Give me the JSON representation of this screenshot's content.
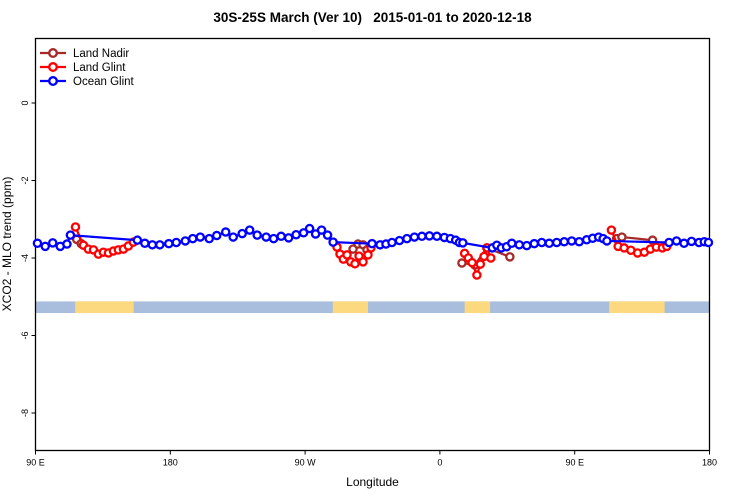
{
  "chart_data": {
    "type": "line",
    "title": "30S-25S March (Ver 10)   2015-01-01 to 2020-12-18",
    "xlabel": "Longitude",
    "ylabel": "XCO2 - MLO trend (ppm)",
    "legend_position": "top-left",
    "grid": false,
    "x_range_deg": [
      90,
      540
    ],
    "y_range_ppm": [
      -8.95,
      1.68
    ],
    "x_axis_note": "longitude wraps eastward: 90E, 180, 90W, 0, 90E, 180",
    "x_ticks": [
      {
        "value": 90,
        "label": "90 E"
      },
      {
        "value": 180,
        "label": "180"
      },
      {
        "value": 270,
        "label": "90 W"
      },
      {
        "value": 360,
        "label": "0"
      },
      {
        "value": 450,
        "label": "90 E"
      },
      {
        "value": 540,
        "label": "180"
      }
    ],
    "y_ticks": [
      {
        "value": 0,
        "label": "0"
      },
      {
        "value": -2,
        "label": "-2"
      },
      {
        "value": -4,
        "label": "-4"
      },
      {
        "value": -6,
        "label": "-6"
      },
      {
        "value": -8,
        "label": "-8"
      }
    ],
    "series": [
      {
        "name": "Land Nadir",
        "color": "#A52A2A",
        "marker": "open-circle",
        "clusters": [
          [
            [
              117.5,
              -3.52
            ],
            [
              120.5,
              -3.63
            ]
          ],
          [
            [
              302,
              -3.77
            ],
            [
              305.3,
              -3.64
            ],
            [
              308.7,
              -3.66
            ],
            [
              311.3,
              -3.79
            ]
          ],
          [
            [
              374.7,
              -4.13
            ],
            [
              383.3,
              -4.18
            ],
            [
              391.3,
              -3.74
            ],
            [
              406.7,
              -3.97
            ]
          ],
          [
            [
              478,
              -3.5
            ],
            [
              481.5,
              -3.46
            ],
            [
              502,
              -3.54
            ]
          ]
        ]
      },
      {
        "name": "Land Glint",
        "color": "#FF0000",
        "marker": "open-circle",
        "clusters": [
          [
            [
              116.7,
              -3.2
            ],
            [
              122,
              -3.67
            ],
            [
              125.3,
              -3.77
            ],
            [
              128.7,
              -3.79
            ],
            [
              132,
              -3.9
            ],
            [
              135.3,
              -3.85
            ],
            [
              138.7,
              -3.87
            ],
            [
              142,
              -3.82
            ],
            [
              145.3,
              -3.79
            ],
            [
              148.7,
              -3.77
            ],
            [
              152,
              -3.69
            ],
            [
              155.3,
              -3.59
            ]
          ],
          [
            [
              291.3,
              -3.72
            ],
            [
              293.3,
              -3.9
            ],
            [
              295.5,
              -4.03
            ],
            [
              298,
              -3.92
            ],
            [
              300.5,
              -4.1
            ],
            [
              303.3,
              -4.15
            ],
            [
              306,
              -3.95
            ],
            [
              308.7,
              -4.1
            ],
            [
              312,
              -3.92
            ],
            [
              314,
              -3.74
            ]
          ],
          [
            [
              376.5,
              -3.88
            ],
            [
              379,
              -4.0
            ],
            [
              381.5,
              -4.12
            ],
            [
              384.7,
              -4.44
            ],
            [
              387,
              -4.16
            ],
            [
              389.5,
              -3.96
            ],
            [
              391.5,
              -3.74
            ],
            [
              394,
              -4.0
            ]
          ],
          [
            [
              474.5,
              -3.28
            ],
            [
              479,
              -3.7
            ],
            [
              483,
              -3.74
            ],
            [
              487.5,
              -3.8
            ],
            [
              492,
              -3.87
            ],
            [
              496.5,
              -3.85
            ],
            [
              500.5,
              -3.77
            ],
            [
              504.5,
              -3.72
            ],
            [
              508.5,
              -3.74
            ],
            [
              511.5,
              -3.7
            ]
          ]
        ]
      },
      {
        "name": "Ocean Glint",
        "color": "#0000FF",
        "marker": "open-circle",
        "clusters": [
          [
            [
              91.3,
              -3.62
            ],
            [
              96.5,
              -3.7
            ],
            [
              101.5,
              -3.61
            ],
            [
              106.5,
              -3.7
            ],
            [
              111,
              -3.64
            ],
            [
              113.3,
              -3.41
            ],
            [
              158,
              -3.54
            ],
            [
              163,
              -3.62
            ],
            [
              168,
              -3.66
            ],
            [
              173,
              -3.66
            ],
            [
              179,
              -3.63
            ],
            [
              184,
              -3.6
            ],
            [
              190,
              -3.56
            ],
            [
              195,
              -3.5
            ],
            [
              200,
              -3.46
            ],
            [
              206,
              -3.5
            ],
            [
              211,
              -3.42
            ],
            [
              217,
              -3.33
            ],
            [
              222,
              -3.46
            ],
            [
              228,
              -3.37
            ],
            [
              233,
              -3.28
            ],
            [
              238,
              -3.41
            ],
            [
              244,
              -3.46
            ],
            [
              249,
              -3.5
            ],
            [
              254,
              -3.44
            ],
            [
              259,
              -3.48
            ],
            [
              264,
              -3.4
            ],
            [
              269,
              -3.35
            ],
            [
              273,
              -3.24
            ],
            [
              277,
              -3.38
            ],
            [
              281,
              -3.28
            ],
            [
              285,
              -3.41
            ],
            [
              288.7,
              -3.59
            ],
            [
              314.7,
              -3.63
            ],
            [
              320,
              -3.66
            ],
            [
              324,
              -3.64
            ],
            [
              328,
              -3.6
            ],
            [
              333,
              -3.55
            ],
            [
              338,
              -3.5
            ],
            [
              343,
              -3.46
            ],
            [
              348,
              -3.44
            ],
            [
              353,
              -3.43
            ],
            [
              358,
              -3.44
            ],
            [
              363,
              -3.47
            ],
            [
              367,
              -3.5
            ],
            [
              370.5,
              -3.54
            ],
            [
              373,
              -3.6
            ],
            [
              375.3,
              -3.61
            ],
            [
              395,
              -3.74
            ],
            [
              398,
              -3.67
            ],
            [
              401,
              -3.74
            ],
            [
              404.5,
              -3.71
            ],
            [
              408,
              -3.62
            ],
            [
              413,
              -3.66
            ],
            [
              418,
              -3.68
            ],
            [
              423,
              -3.63
            ],
            [
              428,
              -3.6
            ],
            [
              433,
              -3.62
            ],
            [
              438,
              -3.6
            ],
            [
              443,
              -3.58
            ],
            [
              448,
              -3.56
            ],
            [
              453,
              -3.58
            ],
            [
              458,
              -3.53
            ],
            [
              462,
              -3.49
            ],
            [
              466,
              -3.46
            ],
            [
              469,
              -3.5
            ],
            [
              471.5,
              -3.56
            ],
            [
              513,
              -3.6
            ],
            [
              518,
              -3.56
            ],
            [
              523,
              -3.62
            ],
            [
              528,
              -3.57
            ],
            [
              533,
              -3.6
            ],
            [
              536.5,
              -3.58
            ],
            [
              539.3,
              -3.6
            ]
          ]
        ]
      }
    ],
    "land_ocean_band": {
      "description": "land/ocean indicator strip",
      "ocean_color": "#a9bedd",
      "land_color": "#fcd97e",
      "y_center_ppm": -5.27,
      "height_ppm": 0.3,
      "land_segments_deg": [
        [
          116.5,
          155.5
        ],
        [
          288.5,
          312
        ],
        [
          376.5,
          393.5
        ],
        [
          473,
          510
        ]
      ]
    }
  }
}
